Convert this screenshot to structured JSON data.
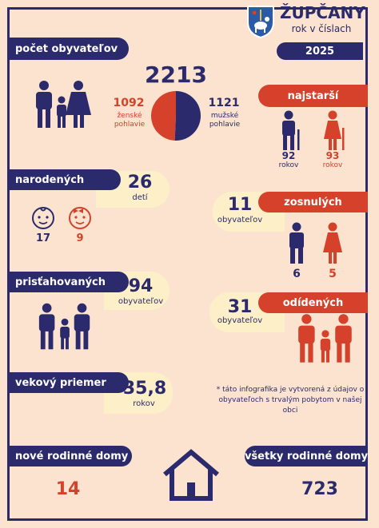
{
  "header": {
    "title": "ŽUPČANY",
    "subtitle": "rok v číslach",
    "year": "2025",
    "crest_icon": "coat-of-arms-icon"
  },
  "population": {
    "label": "počet obyvateľov",
    "total": "2213",
    "female_count": "1092",
    "female_label": "ženské pohlavie",
    "male_count": "1121",
    "male_label": "mužské pohlavie",
    "female_share": 0.493,
    "male_share": 0.507
  },
  "oldest": {
    "label": "najstarší",
    "male_age": "92",
    "female_age": "93",
    "unit": "rokov"
  },
  "births": {
    "label": "narodených",
    "count": "26",
    "unit": "detí",
    "boys": "17",
    "girls": "9"
  },
  "deaths": {
    "label": "zosnulých",
    "count": "11",
    "unit": "obyvateľov",
    "male": "6",
    "female": "5"
  },
  "immigrants": {
    "label": "prisťahovaných",
    "count": "94",
    "unit": "obyvateľov"
  },
  "emigrants": {
    "label": "odídených",
    "count": "31",
    "unit": "obyvateľov"
  },
  "average_age": {
    "label": "vekový priemer",
    "value": "35,8",
    "unit": "rokov"
  },
  "note": "* táto infografika je vytvorená z údajov o obyvateľoch s trvalým pobytom v našej obci",
  "new_houses": {
    "label": "nové rodinné domy",
    "count": "14"
  },
  "all_houses": {
    "label": "všetky rodinné domy",
    "count": "723"
  },
  "colors": {
    "navy": "#2b2a6c",
    "red": "#d5412a",
    "background": "#fbe3cf",
    "bubble": "#fdf0c9"
  }
}
